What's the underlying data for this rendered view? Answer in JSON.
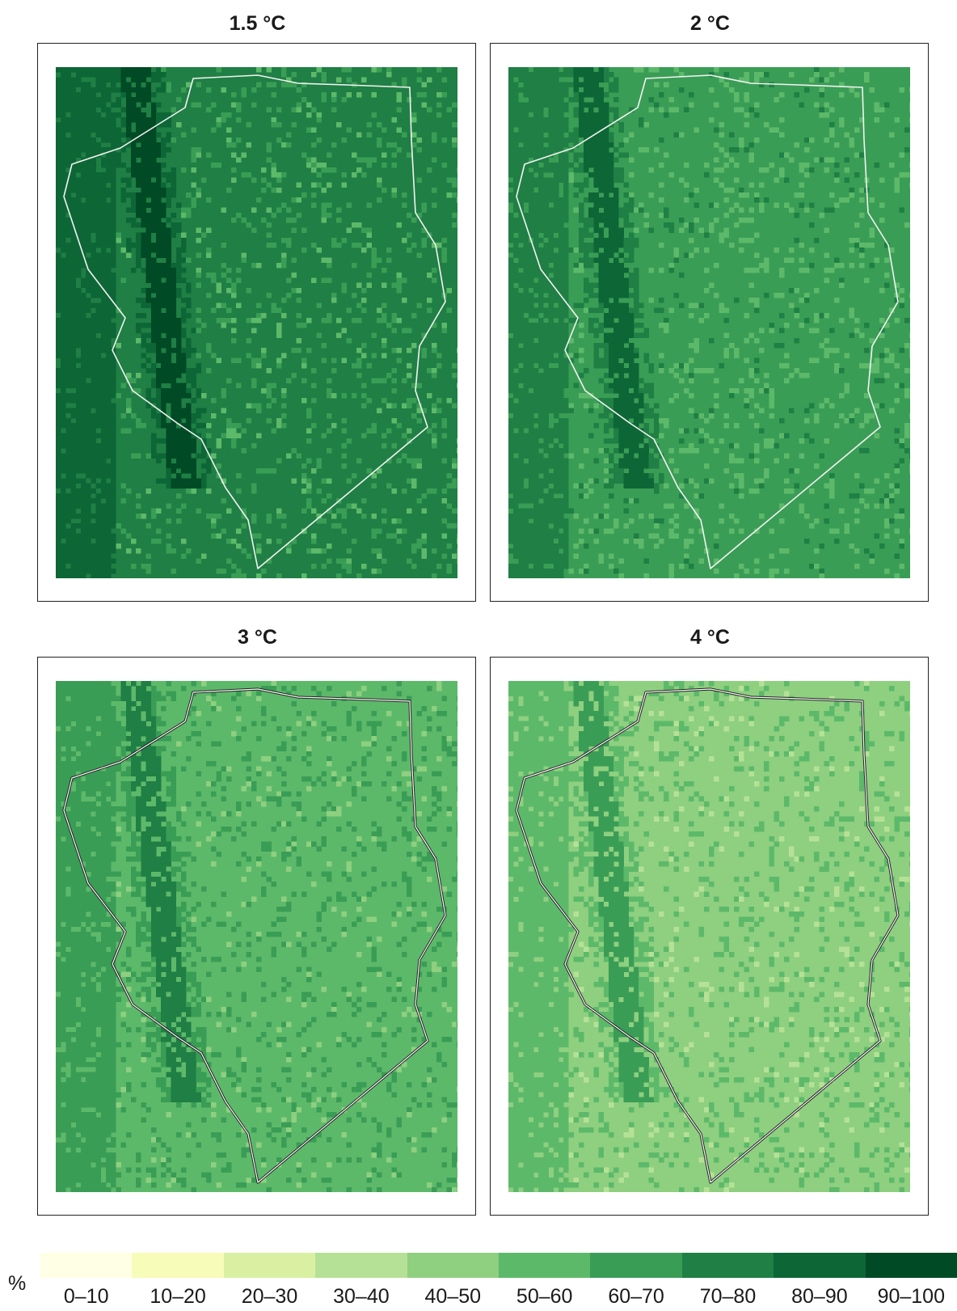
{
  "panels": [
    {
      "title": "1.5 °C",
      "base_class": 7,
      "west_class": 8,
      "ridge_class": 9,
      "patch_class": 6,
      "speck_class": 5,
      "hatch_outline": false
    },
    {
      "title": "2 °C",
      "base_class": 6,
      "west_class": 7,
      "ridge_class": 8,
      "patch_class": 5,
      "speck_class": 7,
      "hatch_outline": false
    },
    {
      "title": "3 °C",
      "base_class": 5,
      "west_class": 6,
      "ridge_class": 7,
      "patch_class": 6,
      "speck_class": 4,
      "hatch_outline": true
    },
    {
      "title": "4 °C",
      "base_class": 4,
      "west_class": 5,
      "ridge_class": 6,
      "patch_class": 5,
      "speck_class": 3,
      "hatch_outline": true
    }
  ],
  "legend": {
    "unit": "%",
    "classes": [
      {
        "label": "0–10",
        "color": "#ffffe5"
      },
      {
        "label": "10–20",
        "color": "#f7fcb9"
      },
      {
        "label": "20–30",
        "color": "#d9f0a3"
      },
      {
        "label": "30–40",
        "color": "#b5e196"
      },
      {
        "label": "40–50",
        "color": "#8ecf80"
      },
      {
        "label": "50–60",
        "color": "#5db96a"
      },
      {
        "label": "60–70",
        "color": "#3a9d55"
      },
      {
        "label": "70–80",
        "color": "#1f7f44"
      },
      {
        "label": "80–90",
        "color": "#0d6636"
      },
      {
        "label": "90–100",
        "color": "#004a25"
      }
    ]
  }
}
